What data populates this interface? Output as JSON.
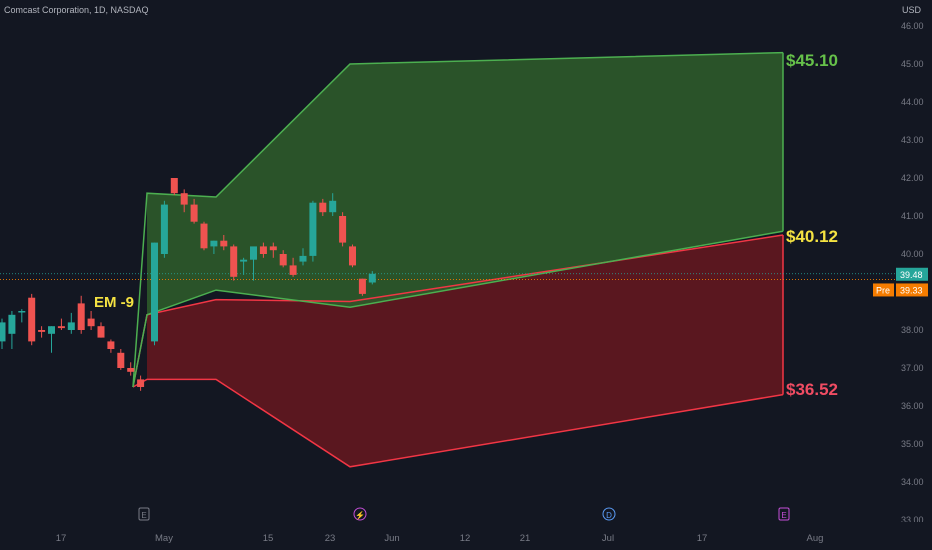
{
  "header": {
    "symbol_title": "Comcast Corporation, 1D, NASDAQ",
    "axis_unit": "USD"
  },
  "chart_data": {
    "type": "candlestick",
    "title": "Comcast Corporation, 1D, NASDAQ",
    "ylim": [
      33.0,
      46.0
    ],
    "y_ticks": [
      "33.00",
      "34.00",
      "35.00",
      "36.00",
      "37.00",
      "38.00",
      "39.00",
      "40.00",
      "41.00",
      "42.00",
      "43.00",
      "44.00",
      "45.00",
      "46.00"
    ],
    "x_tick_labels": [
      "17",
      "May",
      "15",
      "23",
      "Jun",
      "12",
      "21",
      "Jul",
      "17",
      "Aug"
    ],
    "candles": [
      {
        "o": 37.7,
        "h": 38.3,
        "l": 37.5,
        "c": 38.2
      },
      {
        "o": 37.9,
        "h": 38.5,
        "l": 37.5,
        "c": 38.4
      },
      {
        "o": 38.5,
        "h": 38.55,
        "l": 38.2,
        "c": 38.5
      },
      {
        "o": 38.85,
        "h": 38.95,
        "l": 37.6,
        "c": 37.7
      },
      {
        "o": 38.0,
        "h": 38.1,
        "l": 37.8,
        "c": 37.95
      },
      {
        "o": 37.9,
        "h": 38.1,
        "l": 37.4,
        "c": 38.1
      },
      {
        "o": 38.1,
        "h": 38.3,
        "l": 38.0,
        "c": 38.05
      },
      {
        "o": 38.0,
        "h": 38.45,
        "l": 37.9,
        "c": 38.2
      },
      {
        "o": 38.7,
        "h": 38.9,
        "l": 37.9,
        "c": 38.0
      },
      {
        "o": 38.3,
        "h": 38.5,
        "l": 38.0,
        "c": 38.1
      },
      {
        "o": 38.1,
        "h": 38.2,
        "l": 37.8,
        "c": 37.8
      },
      {
        "o": 37.7,
        "h": 37.75,
        "l": 37.4,
        "c": 37.5
      },
      {
        "o": 37.4,
        "h": 37.5,
        "l": 36.95,
        "c": 37.0
      },
      {
        "o": 37.0,
        "h": 37.15,
        "l": 36.8,
        "c": 36.9
      },
      {
        "o": 36.7,
        "h": 36.8,
        "l": 36.4,
        "c": 36.5
      },
      {
        "o": 37.7,
        "h": 40.3,
        "l": 37.6,
        "c": 40.3
      },
      {
        "o": 40.0,
        "h": 41.4,
        "l": 39.9,
        "c": 41.3
      },
      {
        "o": 42.0,
        "h": 42.0,
        "l": 41.55,
        "c": 41.6
      },
      {
        "o": 41.6,
        "h": 41.7,
        "l": 41.1,
        "c": 41.3
      },
      {
        "o": 41.3,
        "h": 41.45,
        "l": 40.8,
        "c": 40.85
      },
      {
        "o": 40.8,
        "h": 40.85,
        "l": 40.1,
        "c": 40.15
      },
      {
        "o": 40.2,
        "h": 40.35,
        "l": 40.0,
        "c": 40.35
      },
      {
        "o": 40.35,
        "h": 40.5,
        "l": 40.1,
        "c": 40.2
      },
      {
        "o": 40.2,
        "h": 40.25,
        "l": 39.3,
        "c": 39.4
      },
      {
        "o": 39.8,
        "h": 39.9,
        "l": 39.45,
        "c": 39.85
      },
      {
        "o": 39.85,
        "h": 40.1,
        "l": 39.3,
        "c": 40.2
      },
      {
        "o": 40.2,
        "h": 40.3,
        "l": 39.9,
        "c": 40.0
      },
      {
        "o": 40.2,
        "h": 40.3,
        "l": 39.9,
        "c": 40.1
      },
      {
        "o": 40.0,
        "h": 40.1,
        "l": 39.65,
        "c": 39.7
      },
      {
        "o": 39.7,
        "h": 39.9,
        "l": 39.4,
        "c": 39.45
      },
      {
        "o": 39.8,
        "h": 40.15,
        "l": 39.7,
        "c": 39.95
      },
      {
        "o": 39.95,
        "h": 41.4,
        "l": 39.8,
        "c": 41.35
      },
      {
        "o": 41.35,
        "h": 41.45,
        "l": 41.0,
        "c": 41.1
      },
      {
        "o": 41.1,
        "h": 41.6,
        "l": 41.0,
        "c": 41.4
      },
      {
        "o": 41.0,
        "h": 41.1,
        "l": 40.2,
        "c": 40.3
      },
      {
        "o": 40.2,
        "h": 40.25,
        "l": 39.65,
        "c": 39.7
      },
      {
        "o": 39.35,
        "h": 39.35,
        "l": 38.9,
        "c": 38.95
      },
      {
        "o": 39.25,
        "h": 39.55,
        "l": 39.2,
        "c": 39.48
      }
    ],
    "annotations": [
      {
        "text": "EM -9",
        "color": "#f5e342"
      },
      {
        "text": "$45.10",
        "color": "#66c14a"
      },
      {
        "text": "$40.12",
        "color": "#f5e342"
      },
      {
        "text": "$36.52",
        "color": "#f04c63"
      }
    ],
    "green_zone_outline": [
      [
        41.6,
        41.5,
        45.0,
        45.3
      ],
      [
        38.4,
        39.05,
        38.6,
        40.6
      ]
    ],
    "red_zone_outline": [
      [
        38.4,
        38.8,
        38.75,
        40.5
      ],
      [
        36.7,
        36.7,
        34.4,
        36.3
      ]
    ],
    "price_labels": [
      {
        "label": "",
        "value": "39.48",
        "color": "#26a69a"
      },
      {
        "label": "Pre",
        "value": "39.33",
        "color": "#f57c00"
      }
    ],
    "event_markers": [
      "E",
      "⚡",
      "D",
      "E"
    ],
    "grid": false,
    "colors": {
      "background": "#131722",
      "up": "#26a69a",
      "down": "#ef5350",
      "green_fill": "#2e5a2a",
      "green_line": "#4caf50",
      "red_fill": "#5e1720",
      "red_line": "#f23645",
      "axis_text": "#787b86"
    }
  }
}
